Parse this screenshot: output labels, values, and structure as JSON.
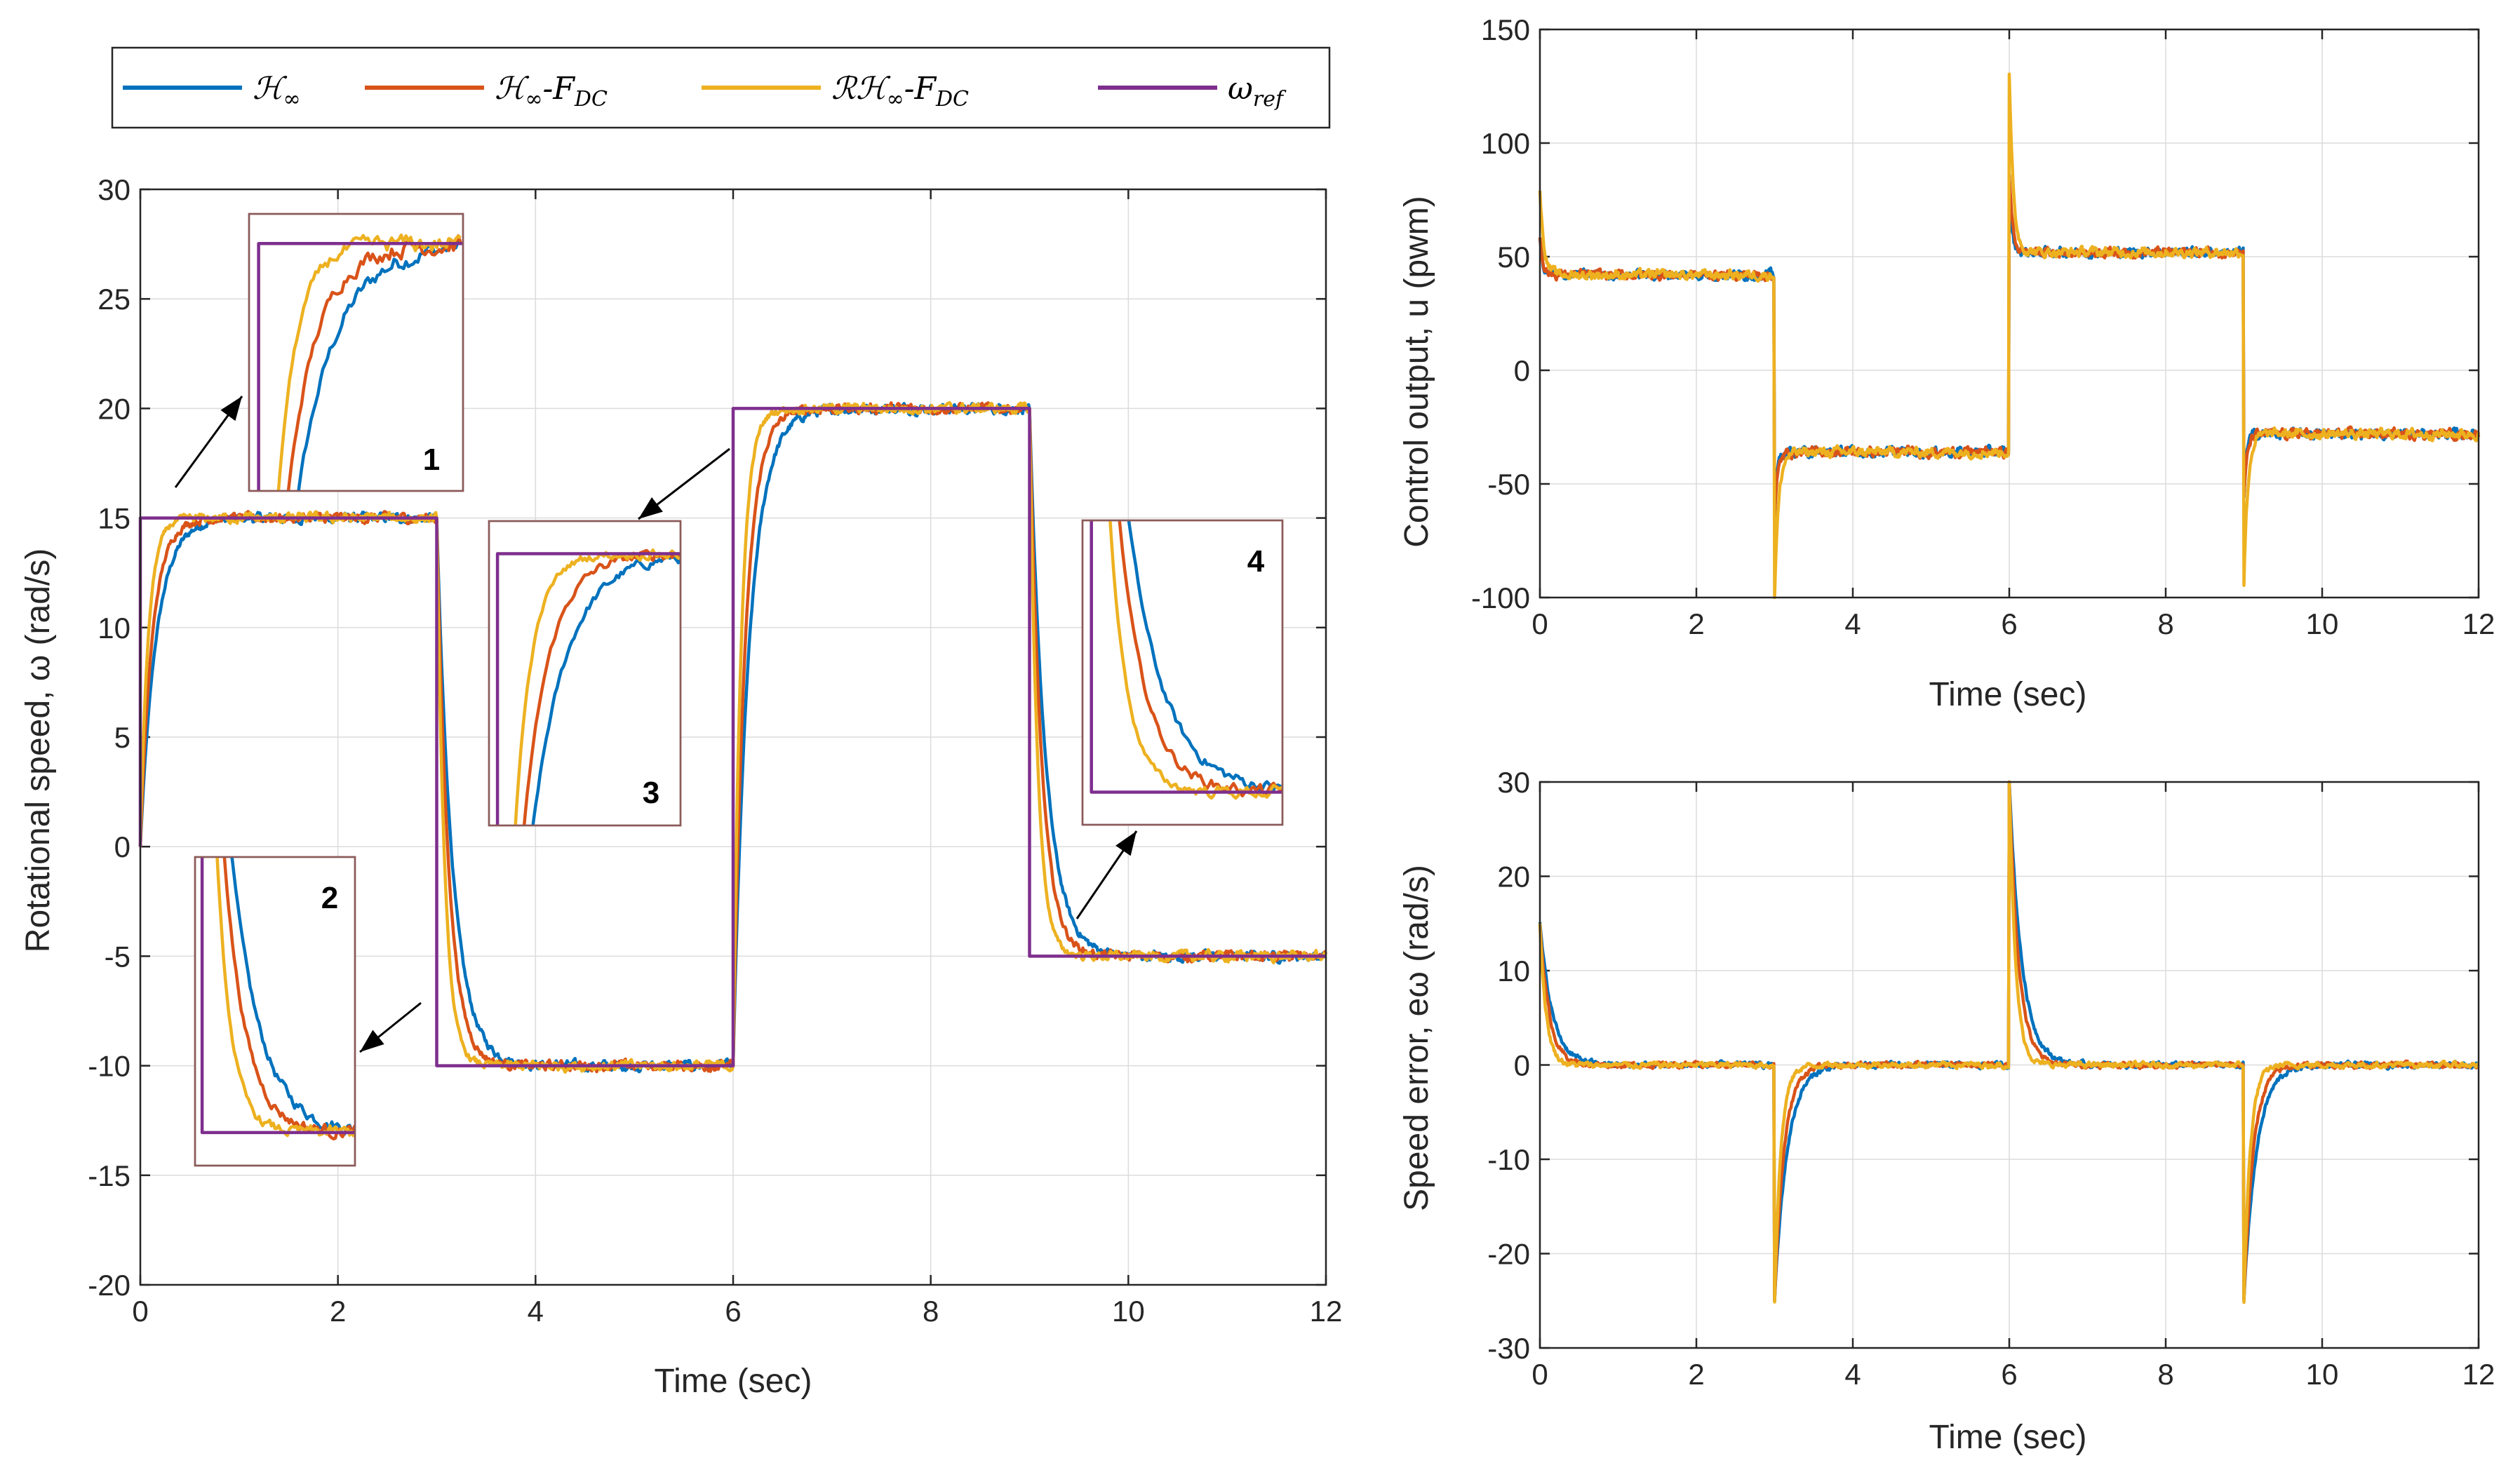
{
  "colors": {
    "blue": "#0072BD",
    "orange": "#D95319",
    "yellow": "#EDB120",
    "purple": "#7E2F8E"
  },
  "legend": {
    "items": [
      {
        "name": "H∞",
        "color": "#0072BD"
      },
      {
        "name": "H∞-FDC",
        "color": "#D95319"
      },
      {
        "name": "RH∞-FDC",
        "color": "#EDB120"
      },
      {
        "name": "ωref",
        "color": "#7E2F8E"
      }
    ]
  },
  "chart_data": [
    {
      "type": "line",
      "id": "speed",
      "title": "",
      "xlabel": "Time (sec)",
      "ylabel": "Rotational speed, ω (rad/s)",
      "xlim": [
        0,
        12
      ],
      "ylim": [
        -20,
        30
      ],
      "xticks": [
        0,
        2,
        4,
        6,
        8,
        10,
        12
      ],
      "yticks": [
        -20,
        -15,
        -10,
        -5,
        0,
        5,
        10,
        15,
        20,
        25,
        30
      ],
      "grid": true,
      "reference": {
        "name": "ωref",
        "steps": [
          [
            0,
            15
          ],
          [
            3,
            -10
          ],
          [
            6,
            20
          ],
          [
            9,
            -5
          ]
        ]
      },
      "series": [
        {
          "name": "H∞",
          "tau": 0.16,
          "noise": 0.35
        },
        {
          "name": "H∞-FDC",
          "tau": 0.12,
          "noise": 0.35
        },
        {
          "name": "RH∞-FDC",
          "tau": 0.08,
          "noise": 0.35
        }
      ],
      "insets": [
        {
          "label": "1",
          "step_time": 0
        },
        {
          "label": "2",
          "step_time": 3
        },
        {
          "label": "3",
          "step_time": 6
        },
        {
          "label": "4",
          "step_time": 9
        }
      ]
    },
    {
      "type": "line",
      "id": "control",
      "xlabel": "Time (sec)",
      "ylabel": "Control output, u (pwm)",
      "xlim": [
        0,
        12
      ],
      "ylim": [
        -100,
        150
      ],
      "xticks": [
        0,
        2,
        4,
        6,
        8,
        10,
        12
      ],
      "yticks": [
        -100,
        -50,
        0,
        50,
        100,
        150
      ],
      "grid": true,
      "steady_levels": [
        [
          0,
          42
        ],
        [
          3,
          -36
        ],
        [
          6,
          52
        ],
        [
          9,
          -28
        ]
      ],
      "spikes": [
        [
          0,
          80
        ],
        [
          3,
          -100
        ],
        [
          6,
          130
        ],
        [
          9,
          -93
        ]
      ]
    },
    {
      "type": "line",
      "id": "error",
      "xlabel": "Time (sec)",
      "ylabel": "Speed error, eω (rad/s)",
      "xlim": [
        0,
        12
      ],
      "ylim": [
        -30,
        30
      ],
      "xticks": [
        0,
        2,
        4,
        6,
        8,
        10,
        12
      ],
      "yticks": [
        -30,
        -20,
        -10,
        0,
        10,
        20,
        30
      ],
      "grid": true,
      "spikes": [
        [
          0,
          15
        ],
        [
          3,
          -25
        ],
        [
          6,
          30
        ],
        [
          9,
          -25
        ]
      ]
    }
  ]
}
